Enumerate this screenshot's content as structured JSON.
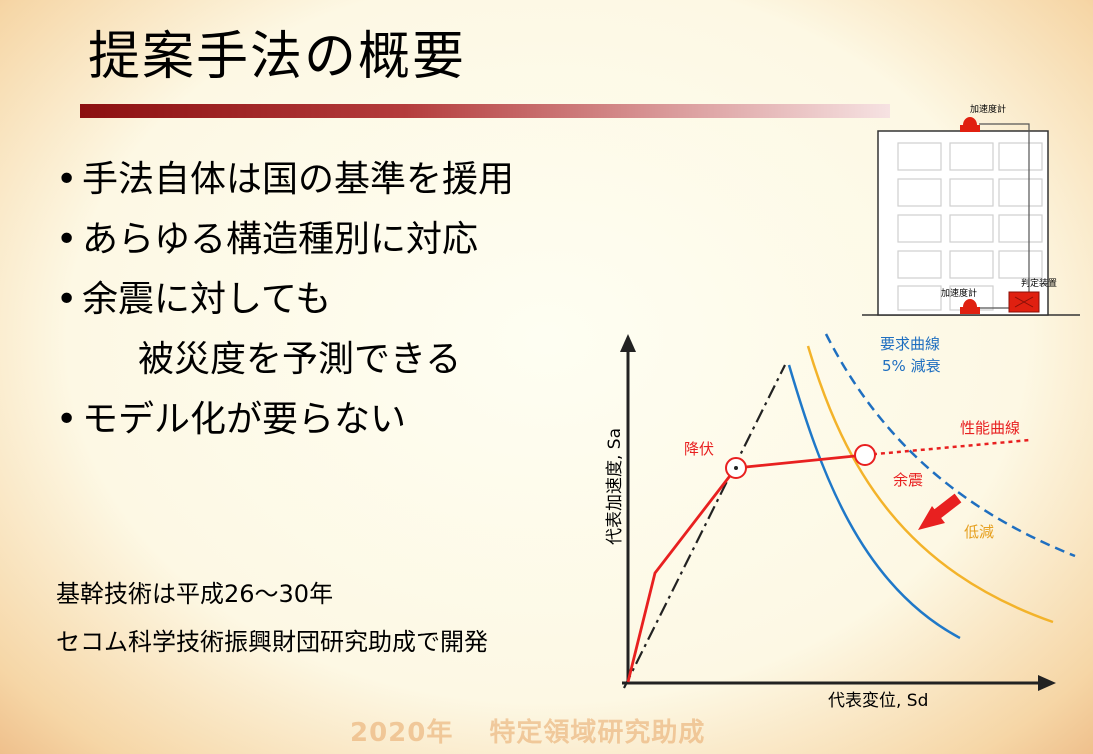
{
  "title": "提案手法の概要",
  "bullets": [
    "手法自体は国の基準を援用",
    "あらゆる構造種別に対応",
    "余震に対しても",
    "被災度を予測できる",
    "モデル化が要らない"
  ],
  "notes": [
    "基幹技術は平成26〜30年",
    "セコム科学技術振興財団研究助成で開発"
  ],
  "footer": {
    "year": "2020年",
    "text": "特定領域研究助成"
  },
  "building": {
    "top_sensor_label": "加速度計",
    "bottom_sensor_label": "加速度計",
    "device_label": "判定装置"
  },
  "chart": {
    "y_axis_label": "代表加速度, Sa",
    "x_axis_label": "代表変位, Sd",
    "demand_label_line1": "要求曲線",
    "demand_label_line2": "5% 減衰",
    "capacity_label": "性能曲線",
    "yield_label": "降伏",
    "aftershock_label": "余震",
    "reduction_label": "低減"
  },
  "colors": {
    "title_rule": "#8c1010",
    "capacity_curve": "#e82020",
    "demand_dashed": "#1f6fc0",
    "demand_blue": "#1f78c8",
    "demand_orange": "#f3b32a",
    "label_blue": "#1f6fc0",
    "label_red": "#e82020",
    "label_orange": "#e6a020"
  }
}
